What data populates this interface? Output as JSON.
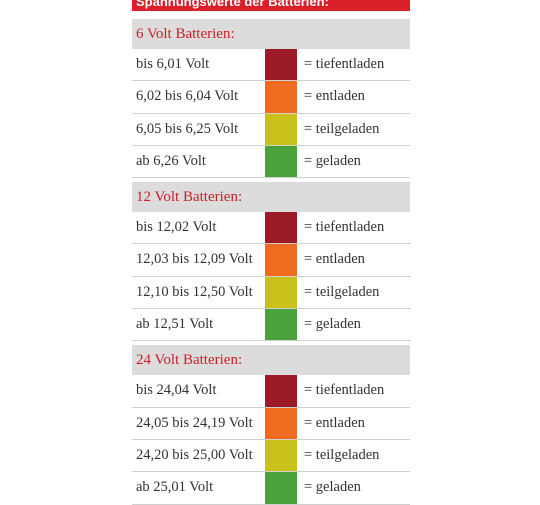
{
  "title": "Spannungswerte der Batterien:",
  "colors": {
    "tiefentladen": "#9b1c26",
    "entladen": "#ef6b1f",
    "teilgeladen": "#c9c21b",
    "geladen": "#4aa33a"
  },
  "groups": [
    {
      "header": "6 Volt Batterien:",
      "rows": [
        {
          "range": "bis 6,01 Volt",
          "status": "= tiefentladen"
        },
        {
          "range": "6,02 bis 6,04 Volt",
          "status": "= entladen"
        },
        {
          "range": "6,05 bis 6,25 Volt",
          "status": "= teilgeladen"
        },
        {
          "range": "ab 6,26 Volt",
          "status": "= geladen"
        }
      ]
    },
    {
      "header": "12 Volt Batterien:",
      "rows": [
        {
          "range": "bis 12,02 Volt",
          "status": "= tiefentladen"
        },
        {
          "range": "12,03 bis 12,09 Volt",
          "status": "= entladen"
        },
        {
          "range": "12,10 bis 12,50 Volt",
          "status": "= teilgeladen"
        },
        {
          "range": "ab 12,51 Volt",
          "status": "= geladen"
        }
      ]
    },
    {
      "header": "24 Volt Batterien:",
      "rows": [
        {
          "range": "bis 24,04 Volt",
          "status": "= tiefentladen"
        },
        {
          "range": "24,05 bis 24,19 Volt",
          "status": "= entladen"
        },
        {
          "range": "24,20 bis 25,00 Volt",
          "status": "= teilgeladen"
        },
        {
          "range": "ab 25,01 Volt",
          "status": "= geladen"
        }
      ]
    }
  ]
}
